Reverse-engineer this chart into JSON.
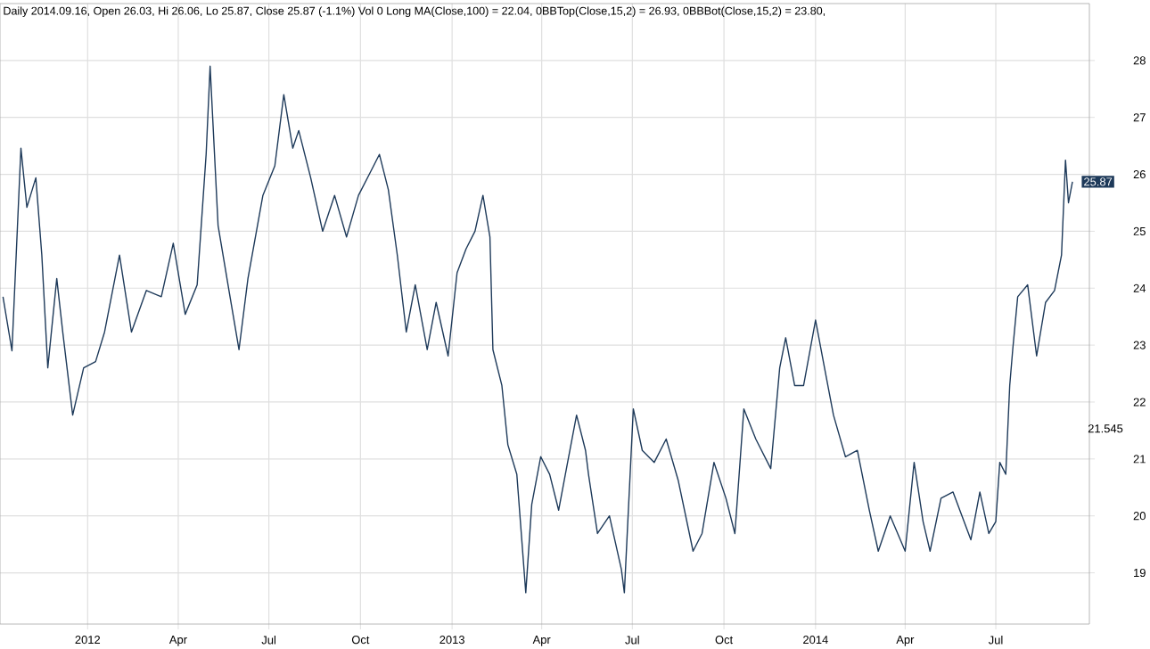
{
  "chart_data": {
    "type": "line",
    "title": "Daily 2014.09.16, Open 26.03, Hi 26.06, Lo 25.87, Close 25.87 (-1.1%) Vol 0 Long MA(Close,100) = 22.04, 0BBTop(Close,15,2) = 26.93, 0BBBot(Close,15,2) = 23.80,",
    "xlim": [
      "2011-10-05",
      "2014-10-03"
    ],
    "xticks": [
      {
        "value": "2012-01-01",
        "label": "2012"
      },
      {
        "value": "2012-04-01",
        "label": "Apr"
      },
      {
        "value": "2012-07-01",
        "label": "Jul"
      },
      {
        "value": "2012-10-01",
        "label": "Oct"
      },
      {
        "value": "2013-01-01",
        "label": "2013"
      },
      {
        "value": "2013-04-01",
        "label": "Apr"
      },
      {
        "value": "2013-07-01",
        "label": "Jul"
      },
      {
        "value": "2013-10-01",
        "label": "Oct"
      },
      {
        "value": "2014-01-01",
        "label": "2014"
      },
      {
        "value": "2014-04-01",
        "label": "Apr"
      },
      {
        "value": "2014-07-01",
        "label": "Jul"
      }
    ],
    "ylim": [
      18.1,
      29
    ],
    "yticks": [
      19,
      20,
      21,
      22,
      23,
      24,
      25,
      26,
      27,
      28
    ],
    "grid": true,
    "annotations": [
      "21.545",
      {
        "text": "25.87",
        "x": "2014-09-16",
        "y": 25.87
      }
    ],
    "series": [
      {
        "color": "#1e3a5a",
        "x": [
          "2011-10-08",
          "2011-10-17",
          "2011-10-26",
          "2011-11-01",
          "2011-11-10",
          "2011-11-16",
          "2011-11-22",
          "2011-12-01",
          "2011-12-07",
          "2011-12-17",
          "2011-12-28",
          "2012-01-09",
          "2012-01-18",
          "2012-02-02",
          "2012-02-14",
          "2012-02-29",
          "2012-03-15",
          "2012-03-27",
          "2012-04-08",
          "2012-04-20",
          "2012-04-29",
          "2012-05-03",
          "2012-05-11",
          "2012-05-23",
          "2012-06-01",
          "2012-06-10",
          "2012-06-25",
          "2012-07-07",
          "2012-07-16",
          "2012-07-25",
          "2012-07-31",
          "2012-08-12",
          "2012-08-24",
          "2012-09-05",
          "2012-09-17",
          "2012-09-29",
          "2012-10-11",
          "2012-10-20",
          "2012-10-29",
          "2012-11-07",
          "2012-11-16",
          "2012-11-25",
          "2012-12-07",
          "2012-12-16",
          "2012-12-28",
          "2013-01-06",
          "2013-01-15",
          "2013-01-24",
          "2013-02-01",
          "2013-02-08",
          "2013-02-11",
          "2013-02-20",
          "2013-02-26",
          "2013-03-07",
          "2013-03-16",
          "2013-03-22",
          "2013-03-31",
          "2013-04-09",
          "2013-04-18",
          "2013-04-27",
          "2013-05-06",
          "2013-05-15",
          "2013-05-18",
          "2013-05-27",
          "2013-06-08",
          "2013-06-20",
          "2013-06-23",
          "2013-07-02",
          "2013-07-11",
          "2013-07-23",
          "2013-08-04",
          "2013-08-16",
          "2013-08-31",
          "2013-09-09",
          "2013-09-21",
          "2013-10-03",
          "2013-10-12",
          "2013-10-21",
          "2013-11-02",
          "2013-11-17",
          "2013-11-26",
          "2013-12-02",
          "2013-12-11",
          "2013-12-20",
          "2014-01-01",
          "2014-01-10",
          "2014-01-19",
          "2014-01-31",
          "2014-02-12",
          "2014-02-24",
          "2014-03-05",
          "2014-03-17",
          "2014-04-01",
          "2014-04-10",
          "2014-04-19",
          "2014-04-26",
          "2014-05-07",
          "2014-05-19",
          "2014-06-06",
          "2014-06-15",
          "2014-06-24",
          "2014-07-01",
          "2014-07-05",
          "2014-07-11",
          "2014-07-15",
          "2014-07-18",
          "2014-07-23",
          "2014-08-02",
          "2014-08-11",
          "2014-08-20",
          "2014-08-29",
          "2014-09-05",
          "2014-09-09",
          "2014-09-12",
          "2014-09-16"
        ],
        "values": [
          23.85,
          22.9,
          26.46,
          25.42,
          25.94,
          24.58,
          22.6,
          24.17,
          23.23,
          21.77,
          22.6,
          22.71,
          23.23,
          24.58,
          23.23,
          23.96,
          23.85,
          24.79,
          23.54,
          24.06,
          26.35,
          27.9,
          25.1,
          23.85,
          22.92,
          24.17,
          25.63,
          26.15,
          27.4,
          26.46,
          26.77,
          25.94,
          25.0,
          25.63,
          24.9,
          25.63,
          26.04,
          26.35,
          25.73,
          24.58,
          23.23,
          24.06,
          22.92,
          23.75,
          22.81,
          24.27,
          24.69,
          25.0,
          25.63,
          24.9,
          22.92,
          22.29,
          21.25,
          20.73,
          18.65,
          20.2,
          21.04,
          20.73,
          20.1,
          20.94,
          21.77,
          21.15,
          20.73,
          19.69,
          20.0,
          19.06,
          18.65,
          21.88,
          21.15,
          20.94,
          21.35,
          20.63,
          19.38,
          19.69,
          20.94,
          20.31,
          19.69,
          21.88,
          21.35,
          20.83,
          22.6,
          23.13,
          22.29,
          22.29,
          23.44,
          22.6,
          21.77,
          21.04,
          21.15,
          20.1,
          19.38,
          20.0,
          19.38,
          20.94,
          19.9,
          19.38,
          20.31,
          20.42,
          19.58,
          20.42,
          19.69,
          19.9,
          20.94,
          20.73,
          22.29,
          22.92,
          23.85,
          24.06,
          22.81,
          23.75,
          23.96,
          24.58,
          26.25,
          25.5,
          25.87
        ]
      }
    ]
  }
}
